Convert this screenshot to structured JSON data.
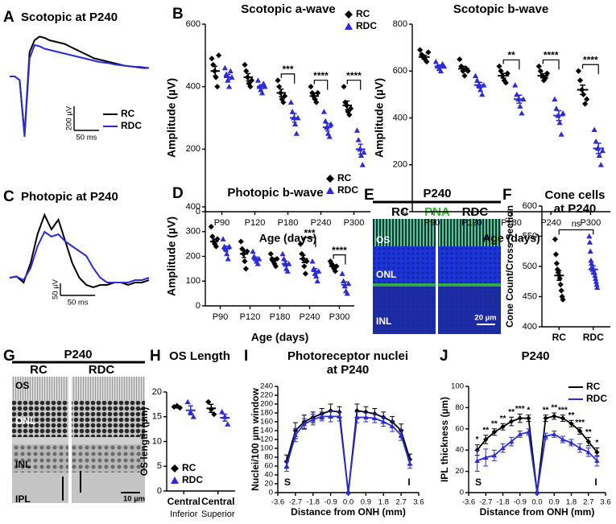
{
  "chart_data": [
    {
      "label": "A",
      "type": "trace",
      "title": "Scotopic at P240",
      "x": [
        0,
        10,
        20,
        30,
        40,
        50,
        60,
        70,
        80,
        90,
        100,
        110,
        120,
        130,
        140,
        150,
        160,
        170,
        180,
        190,
        200,
        210,
        220,
        230,
        240,
        250,
        260,
        270,
        280
      ],
      "series": [
        {
          "name": "RC",
          "color": "#000000",
          "values": [
            0,
            0,
            -30,
            -480,
            200,
            300,
            330,
            320,
            300,
            290,
            280,
            270,
            250,
            230,
            210,
            190,
            170,
            150,
            140,
            130,
            120,
            110,
            100,
            90,
            85,
            80,
            75,
            70,
            70
          ]
        },
        {
          "name": "RDC",
          "color": "#2b2bd9",
          "values": [
            0,
            0,
            -30,
            -500,
            150,
            260,
            250,
            230,
            220,
            210,
            200,
            190,
            180,
            170,
            160,
            150,
            140,
            130,
            120,
            115,
            110,
            100,
            95,
            90,
            85,
            80,
            80,
            75,
            70
          ]
        }
      ],
      "scale_bars": [
        {
          "value": 200,
          "label": "200 µV"
        },
        {
          "value": 50,
          "label": "50 ms"
        }
      ]
    },
    {
      "label": "B",
      "type": "dotplot",
      "title": "Scotopic a-wave",
      "xlabel": "Age (days)",
      "ylabel": "Amplitude (µV)",
      "categories": [
        "P90",
        "P120",
        "P180",
        "P240",
        "P300"
      ],
      "ylim": [
        0,
        600
      ],
      "yticks": [
        0,
        200,
        400,
        600
      ],
      "dodge": true,
      "series": [
        {
          "name": "RC",
          "color": "#000000",
          "marker": "diamond",
          "points": [
            [
              490,
              470,
              450,
              430,
              400,
              500
            ],
            [
              470,
              450,
              430,
              410,
              400,
              420
            ],
            [
              420,
              400,
              380,
              360,
              350,
              370
            ],
            [
              400,
              380,
              370,
              360,
              350,
              380
            ],
            [
              400,
              350,
              340,
              320,
              310,
              330
            ]
          ],
          "means": [
            450,
            430,
            380,
            370,
            340
          ],
          "errors": [
            15,
            12,
            12,
            8,
            14
          ]
        },
        {
          "name": "RDC",
          "color": "#2b2bd9",
          "marker": "triangle",
          "points": [
            [
              460,
              440,
              420,
              400,
              450,
              430
            ],
            [
              420,
              400,
              390,
              380,
              410,
              400
            ],
            [
              350,
              320,
              300,
              280,
              250,
              300
            ],
            [
              320,
              290,
              270,
              250,
              240,
              280
            ],
            [
              260,
              230,
              200,
              180,
              150,
              190
            ]
          ],
          "means": [
            430,
            400,
            300,
            270,
            200
          ],
          "errors": [
            9,
            6,
            14,
            12,
            16
          ]
        }
      ],
      "significance": [
        null,
        null,
        "***",
        "****",
        "****"
      ]
    },
    {
      "type": "dotplot",
      "title": "Scotopic b-wave",
      "xlabel": "Age (days)",
      "ylabel": "Amplitude (µV)",
      "categories": [
        "P90",
        "P120",
        "P180",
        "P240",
        "P300"
      ],
      "ylim": [
        0,
        800
      ],
      "yticks": [
        0,
        200,
        400,
        600,
        800
      ],
      "dodge": true,
      "series": [
        {
          "name": "RC",
          "color": "#000000",
          "marker": "diamond",
          "points": [
            [
              690,
              670,
              660,
              650,
              640,
              680
            ],
            [
              650,
              620,
              600,
              580,
              610,
              600
            ],
            [
              620,
              600,
              580,
              560,
              550,
              590
            ],
            [
              620,
              600,
              580,
              560,
              570,
              590
            ],
            [
              600,
              560,
              520,
              500,
              460,
              480
            ]
          ],
          "means": [
            660,
            610,
            580,
            580,
            520
          ],
          "errors": [
            8,
            10,
            10,
            9,
            20
          ]
        },
        {
          "name": "RDC",
          "color": "#2b2bd9",
          "marker": "triangle",
          "points": [
            [
              640,
              620,
              610,
              600,
              630,
              620
            ],
            [
              580,
              560,
              540,
              520,
              500,
              540
            ],
            [
              540,
              500,
              480,
              450,
              420,
              480
            ],
            [
              480,
              440,
              410,
              380,
              330,
              420
            ],
            [
              350,
              300,
              270,
              240,
              200,
              260
            ]
          ],
          "means": [
            620,
            540,
            480,
            410,
            270
          ],
          "errors": [
            6,
            12,
            17,
            21,
            22
          ]
        }
      ],
      "significance": [
        null,
        null,
        "**",
        "****",
        "****"
      ]
    },
    {
      "label": "C",
      "type": "trace",
      "title": "Photopic at P240",
      "x": [
        0,
        10,
        20,
        30,
        40,
        50,
        60,
        70,
        80,
        90,
        100,
        110,
        120,
        130,
        140,
        150,
        160,
        170,
        180,
        190,
        200
      ],
      "series": [
        {
          "color": "#000000",
          "values": [
            0,
            5,
            -20,
            60,
            180,
            260,
            200,
            240,
            150,
            60,
            0,
            -30,
            -40,
            -30,
            -30,
            -20,
            -20,
            -30,
            -20,
            -20,
            -10
          ]
        },
        {
          "color": "#2b2bd9",
          "values": [
            0,
            5,
            -10,
            40,
            130,
            190,
            170,
            180,
            150,
            130,
            110,
            90,
            40,
            0,
            -20,
            -20,
            -20,
            -20,
            -10,
            -10,
            0
          ]
        }
      ],
      "scale_bars": [
        {
          "value": 50,
          "label": "50 µV"
        },
        {
          "value": 50,
          "label": "50 ms"
        }
      ]
    },
    {
      "label": "D",
      "type": "dotplot",
      "title": "Photopic b-wave",
      "xlabel": "Age (days)",
      "ylabel": "Amplitude (µV)",
      "categories": [
        "P90",
        "P120",
        "P180",
        "P240",
        "P300"
      ],
      "ylim": [
        0,
        400
      ],
      "yticks": [
        0,
        100,
        200,
        300,
        400
      ],
      "dodge": true,
      "series": [
        {
          "name": "RC",
          "color": "#000000",
          "marker": "diamond",
          "points": [
            [
              320,
              280,
              260,
              250,
              240,
              270
            ],
            [
              260,
              230,
              210,
              180,
              150,
              220
            ],
            [
              210,
              190,
              180,
              170,
              160,
              190
            ],
            [
              250,
              210,
              190,
              160,
              130,
              180
            ],
            [
              180,
              170,
              160,
              150,
              140,
              160
            ]
          ],
          "means": [
            260,
            210,
            185,
            190,
            160
          ],
          "errors": [
            10,
            15,
            8,
            15,
            6
          ]
        },
        {
          "name": "RDC",
          "color": "#2b2bd9",
          "marker": "triangle",
          "points": [
            [
              270,
              240,
              230,
              210,
              190,
              240
            ],
            [
              220,
              200,
              190,
              180,
              170,
              190
            ],
            [
              210,
              190,
              170,
              150,
              140,
              170
            ],
            [
              180,
              150,
              130,
              120,
              100,
              140
            ],
            [
              130,
              100,
              80,
              60,
              50,
              90
            ]
          ],
          "means": [
            230,
            190,
            170,
            140,
            85
          ],
          "errors": [
            11,
            7,
            10,
            11,
            12
          ]
        }
      ],
      "significance": [
        null,
        null,
        null,
        "***",
        "****"
      ]
    },
    {
      "label": "F",
      "type": "dotplot",
      "title": [
        "Cone cells",
        "at P240"
      ],
      "ylabel": "Cone Count/Cross Section",
      "categories": [
        "RC",
        "RDC"
      ],
      "ylim": [
        400,
        600
      ],
      "yticks": [
        400,
        450,
        500,
        550,
        600
      ],
      "dodge": false,
      "series": [
        {
          "color": "#000000",
          "marker": "diamond",
          "points": [
            [
              545,
              520,
              505,
              495,
              490,
              485,
              480,
              470,
              460,
              450,
              445
            ],
            null
          ],
          "means": [
            485,
            null
          ],
          "errors": [
            8,
            null
          ]
        },
        {
          "color": "#2b2bd9",
          "marker": "triangle",
          "points": [
            null,
            [
              550,
              540,
              525,
              510,
              505,
              500,
              495,
              495,
              490,
              490,
              485,
              480,
              475,
              470,
              465
            ]
          ],
          "means": [
            null,
            495
          ],
          "errors": [
            null,
            6
          ]
        }
      ],
      "comparison": "ns"
    },
    {
      "label": "H",
      "type": "dotplot",
      "title": "OS Length",
      "ylabel": "OS length (µm)",
      "categories": [
        "Central",
        "Central"
      ],
      "subcategories": [
        "Inferior",
        "Superior"
      ],
      "ylim": [
        0,
        20
      ],
      "yticks": [
        0,
        5,
        10,
        15,
        20
      ],
      "dodge": true,
      "series": [
        {
          "name": "RC",
          "color": "#000000",
          "marker": "diamond",
          "points": [
            [
              17,
              17.2,
              16.8
            ],
            [
              18,
              16.5,
              15.5
            ]
          ],
          "means": [
            17,
            16.7
          ],
          "errors": [
            0.2,
            0.8
          ]
        },
        {
          "name": "RDC",
          "color": "#2b2bd9",
          "marker": "triangle",
          "points": [
            [
              18,
              16,
              15
            ],
            [
              16,
              15,
              13.5
            ]
          ],
          "means": [
            16.3,
            14.8
          ],
          "errors": [
            0.9,
            0.7
          ]
        }
      ]
    },
    {
      "label": "I",
      "type": "line",
      "title": [
        "Photoreceptor nuclei",
        "at P240"
      ],
      "xlabel": "Distance from ONH (mm)",
      "ylabel": "Nuclei/100 µm window",
      "x": [
        -3.15,
        -2.7,
        -2.25,
        -1.8,
        -1.35,
        -0.9,
        -0.45,
        0,
        0.45,
        0.9,
        1.35,
        1.8,
        2.25,
        2.7,
        3.15
      ],
      "xlim": [
        -3.6,
        3.6
      ],
      "xticks": [
        -3.6,
        -2.7,
        -1.8,
        -0.9,
        {
          "value": 0,
          "label": "0.0"
        },
        0.9,
        1.8,
        2.7,
        3.6
      ],
      "ylim": [
        0,
        240
      ],
      "yticks": [
        0,
        20,
        40,
        60,
        80,
        100,
        120,
        140,
        160,
        180,
        200,
        220,
        240
      ],
      "series": [
        {
          "color": "#000000",
          "marker": "diamond",
          "values": [
            70,
            140,
            160,
            170,
            178,
            185,
            182,
            0,
            185,
            182,
            178,
            170,
            160,
            140,
            75
          ],
          "errors": [
            15,
            18,
            15,
            12,
            12,
            15,
            12,
            0,
            15,
            12,
            12,
            12,
            12,
            15,
            12
          ]
        },
        {
          "color": "#2b2bd9",
          "marker": "triangle",
          "values": [
            60,
            130,
            155,
            165,
            172,
            172,
            172,
            0,
            170,
            170,
            168,
            160,
            150,
            130,
            65
          ],
          "errors": [
            12,
            15,
            12,
            12,
            10,
            12,
            10,
            0,
            12,
            10,
            10,
            10,
            12,
            12,
            10
          ]
        }
      ],
      "end_labels": [
        "S",
        "I"
      ]
    },
    {
      "label": "J",
      "type": "line",
      "title": "P240",
      "xlabel": "Distance from ONH (mm)",
      "ylabel": "IPL thickness (µm)",
      "x": [
        -3.15,
        -2.7,
        -2.25,
        -1.8,
        -1.35,
        -0.9,
        -0.45,
        0,
        0.45,
        0.9,
        1.35,
        1.8,
        2.25,
        2.7,
        3.15
      ],
      "xlim": [
        -3.6,
        3.6
      ],
      "xticks": [
        -3.6,
        -2.7,
        -1.8,
        -0.9,
        {
          "value": 0,
          "label": "0.0"
        },
        0.9,
        1.8,
        2.7,
        3.6
      ],
      "ylim": [
        0,
        100
      ],
      "yticks": [
        0,
        20,
        40,
        60,
        80,
        100
      ],
      "series": [
        {
          "name": "RC",
          "color": "#000000",
          "marker": "diamond",
          "values": [
            40,
            50,
            57,
            62,
            67,
            70,
            70,
            0,
            70,
            72,
            70,
            65,
            58,
            48,
            38
          ],
          "errors": [
            5,
            4,
            3,
            3,
            4,
            4,
            3,
            0,
            3,
            3,
            3,
            3,
            3,
            4,
            4
          ]
        },
        {
          "name": "RDC",
          "color": "#2b2bd9",
          "marker": "triangle",
          "values": [
            30,
            33,
            35,
            42,
            48,
            55,
            57,
            0,
            53,
            55,
            50,
            47,
            42,
            38,
            30
          ],
          "errors": [
            10,
            8,
            5,
            4,
            4,
            3,
            3,
            0,
            3,
            3,
            3,
            3,
            4,
            4,
            5
          ]
        }
      ],
      "significance": [
        "*",
        "**",
        "**",
        "**",
        "**",
        "***",
        "*",
        null,
        "**",
        "**",
        "***",
        "**",
        "***",
        "**",
        "*"
      ],
      "end_labels": [
        "S",
        "I"
      ]
    }
  ],
  "micrographs": [
    {
      "label": "E",
      "title": "P240",
      "columns": [
        "RC",
        "RDC"
      ],
      "stain": "PNA",
      "layers": [
        "OS",
        "ONL",
        "INL"
      ],
      "scale_bar": "20 µm"
    },
    {
      "label": "G",
      "title": "P240",
      "columns": [
        "RC",
        "RDC"
      ],
      "layers": [
        "OS",
        "ONL",
        "INL",
        "IPL"
      ],
      "scale_bar": "10 µm"
    }
  ]
}
